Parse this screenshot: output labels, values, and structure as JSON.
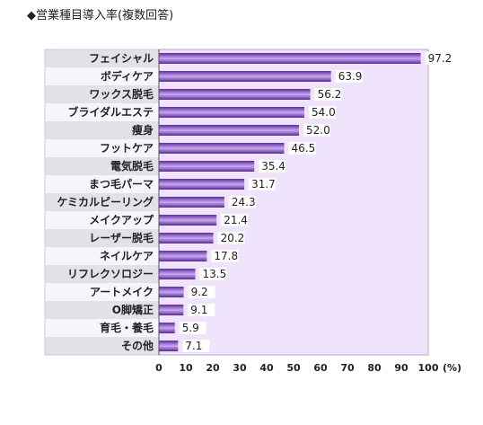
{
  "title": "◆営業種目導入率(複数回答)",
  "unit_label": "(%)",
  "colors": {
    "bar_dark": "#5a2a9a",
    "bar_light": "#c8a8f0",
    "plot_bg": "#efe4fb",
    "label_band_a": "#e4e0e8",
    "label_band_b": "#f7f5f9",
    "value_box": "#ffffff"
  },
  "chart_data": {
    "type": "bar",
    "orientation": "horizontal",
    "title": "◆営業種目導入率(複数回答)",
    "xlabel": "(%)",
    "ylabel": "",
    "xlim": [
      0,
      100
    ],
    "xticks": [
      0,
      10,
      20,
      30,
      40,
      50,
      60,
      70,
      80,
      90,
      100
    ],
    "grid": false,
    "legend": "none",
    "categories": [
      "フェイシャル",
      "ボディケア",
      "ワックス脱毛",
      "ブライダルエステ",
      "痩身",
      "フットケア",
      "電気脱毛",
      "まつ毛パーマ",
      "ケミカルピーリング",
      "メイクアップ",
      "レーザー脱毛",
      "ネイルケア",
      "リフレクソロジー",
      "アートメイク",
      "O脚矯正",
      "育毛・養毛",
      "その他"
    ],
    "values": [
      97.2,
      63.9,
      56.2,
      54.0,
      52.0,
      46.5,
      35.4,
      31.7,
      24.3,
      21.4,
      20.2,
      17.8,
      13.5,
      9.2,
      9.1,
      5.9,
      7.1
    ],
    "value_labels": [
      "97.2",
      "63.9",
      "56.2",
      "54.0",
      "52.0",
      "46.5",
      "35.4",
      "31.7",
      "24.3",
      "21.4",
      "20.2",
      "17.8",
      "13.5",
      "9.2",
      "9.1",
      "5.9",
      "7.1"
    ]
  }
}
